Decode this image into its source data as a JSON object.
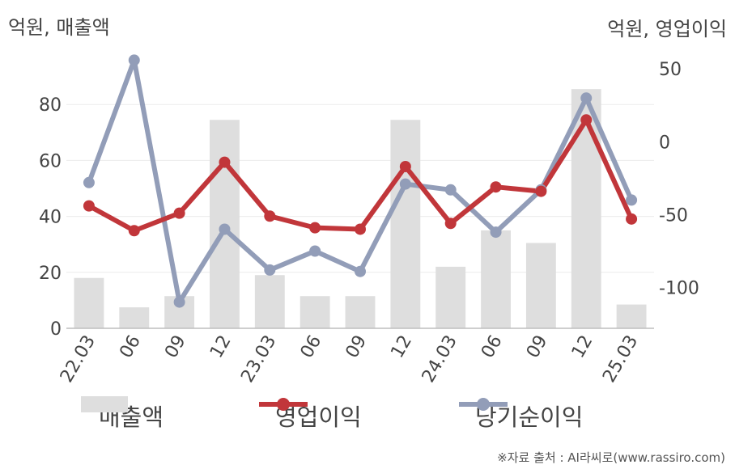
{
  "chart_data": {
    "type": "bar",
    "unit_left": "억원, 매출액",
    "unit_right": "억원, 영업이익",
    "categories": [
      "22.03",
      "06",
      "09",
      "12",
      "23.03",
      "06",
      "09",
      "12",
      "24.03",
      "06",
      "09",
      "12",
      "25.03"
    ],
    "series": [
      {
        "name": "매출액",
        "type": "bar",
        "axis": "left",
        "color": "#dedede",
        "values": [
          18,
          7.5,
          11.5,
          74.5,
          19,
          11.5,
          11.5,
          74.5,
          22,
          35,
          30.5,
          85.5,
          8.5
        ]
      },
      {
        "name": "영업이익",
        "type": "line",
        "axis": "right",
        "color": "#c1363a",
        "values": [
          -44,
          -61,
          -49,
          -14,
          -51,
          -59,
          -60,
          -17,
          -56,
          -31,
          -34,
          15,
          -53
        ]
      },
      {
        "name": "당기순이익",
        "type": "line",
        "axis": "right",
        "color": "#929db8",
        "values": [
          -28,
          56,
          -110,
          -60,
          -88,
          -75,
          -89,
          -29,
          -33,
          -62,
          -33,
          30,
          -40
        ]
      }
    ],
    "yleft": {
      "ticks": [
        0,
        20,
        40,
        60,
        80
      ],
      "range": [
        0,
        100
      ]
    },
    "yright": {
      "ticks": [
        50,
        0,
        -50,
        -100
      ],
      "range": [
        -128,
        64
      ]
    },
    "grid": true,
    "legend_position": "bottom",
    "source": "※자료 출처 : AI라씨로(www.rassiro.com)"
  }
}
